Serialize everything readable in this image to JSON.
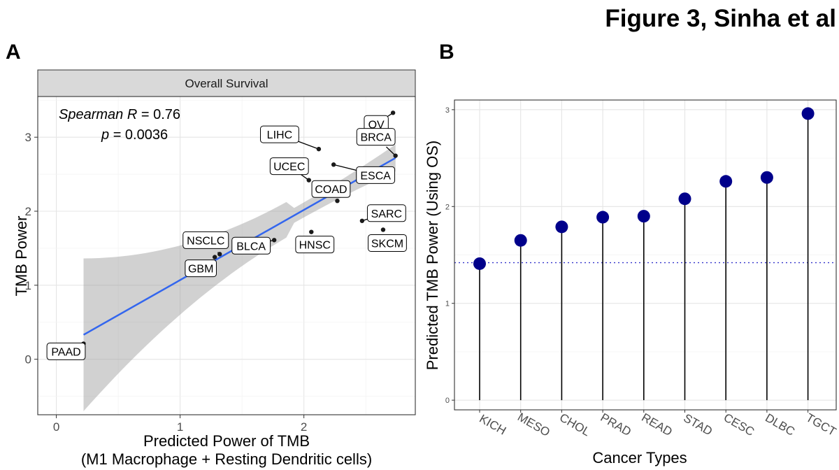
{
  "figure_title": "Figure 3, Sinha et al",
  "chart_data": [
    {
      "panel": "A",
      "type": "scatter",
      "facet_label": "Overall Survival",
      "xlabel_line1": "Predicted Power of TMB",
      "xlabel_line2": "(M1 Macrophage + Resting Dendritic cells)",
      "ylabel": "TMB Power",
      "xlim": [
        -0.15,
        2.9
      ],
      "ylim": [
        -0.75,
        3.55
      ],
      "xticks": [
        0,
        1,
        2
      ],
      "yticks": [
        0,
        1,
        2,
        3
      ],
      "grid": true,
      "stat_label": "Spearman",
      "stat_symbol": "R",
      "stat_value": "= 0.76",
      "p_symbol": "p",
      "p_value": "= 0.0036",
      "regression": {
        "x0": 0.22,
        "y0": 0.33,
        "x1": 2.74,
        "y1": 2.72
      },
      "points": [
        {
          "label": "OV",
          "x": 2.72,
          "y": 3.33
        },
        {
          "label": "LIHC",
          "x": 2.12,
          "y": 2.84
        },
        {
          "label": "BRCA",
          "x": 2.74,
          "y": 2.75
        },
        {
          "label": "ESCA",
          "x": 2.24,
          "y": 2.63
        },
        {
          "label": "UCEC",
          "x": 2.04,
          "y": 2.42
        },
        {
          "label": "COAD",
          "x": 2.27,
          "y": 2.14
        },
        {
          "label": "SARC",
          "x": 2.47,
          "y": 1.87
        },
        {
          "label": "SKCM",
          "x": 2.64,
          "y": 1.75
        },
        {
          "label": "HNSC",
          "x": 2.06,
          "y": 1.72
        },
        {
          "label": "BLCA",
          "x": 1.76,
          "y": 1.61
        },
        {
          "label": "NSCLC",
          "x": 1.32,
          "y": 1.42
        },
        {
          "label": "GBM",
          "x": 1.28,
          "y": 1.38
        },
        {
          "label": "PAAD",
          "x": 0.22,
          "y": 0.21
        }
      ]
    },
    {
      "panel": "B",
      "type": "lollipop",
      "xlabel": "Cancer Types",
      "ylabel": "Predicted TMB Power (Using OS)",
      "ylim": [
        -0.1,
        3.1
      ],
      "yticks": [
        0,
        1,
        2,
        3
      ],
      "reference_line": 1.42,
      "grid": true,
      "categories": [
        "KICH",
        "MESO",
        "CHOL",
        "PRAD",
        "READ",
        "STAD",
        "CESC",
        "DLBC",
        "TGCT"
      ],
      "values": [
        1.41,
        1.65,
        1.79,
        1.89,
        1.9,
        2.08,
        2.26,
        2.3,
        2.96
      ]
    }
  ]
}
